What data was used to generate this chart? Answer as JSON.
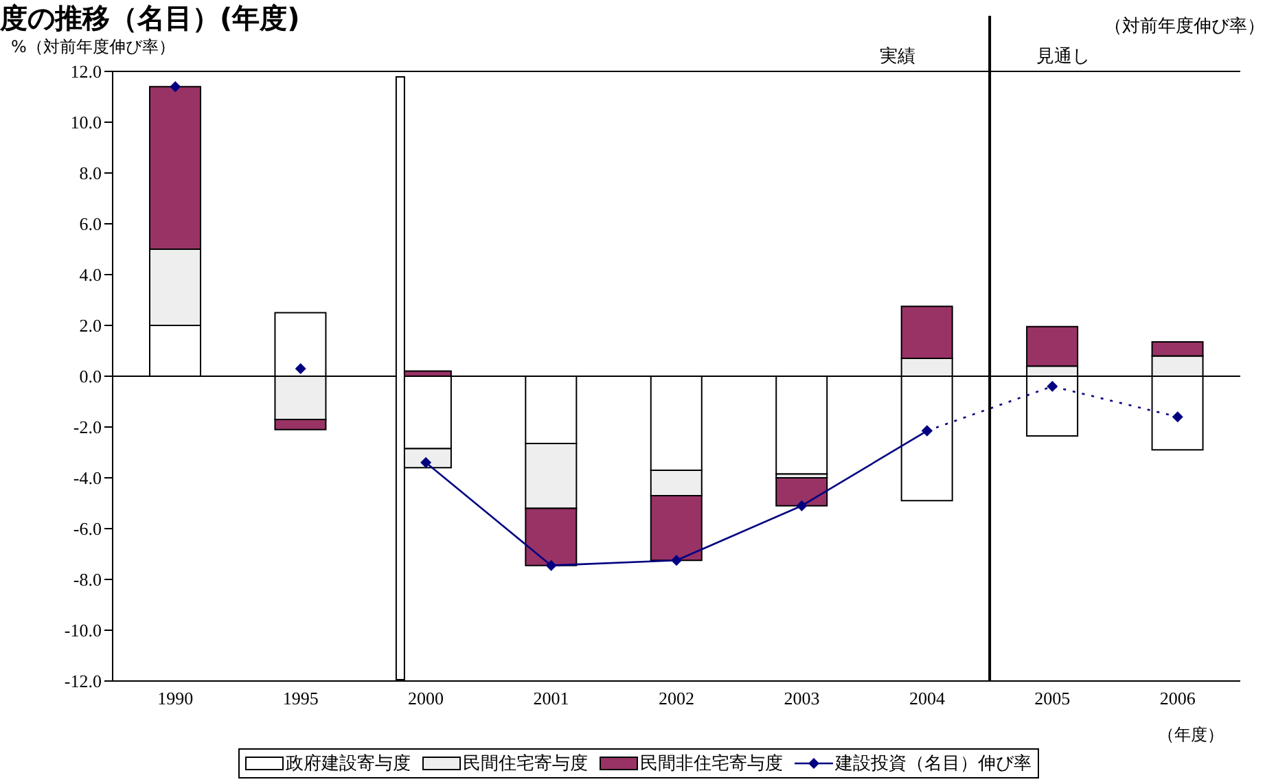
{
  "chart_data": {
    "type": "bar",
    "title": "度の推移（名目）(年度)",
    "ylabel": "%（対前年度伸び率）",
    "xlabel": "（年度）",
    "stacked": true,
    "legend": "bottom",
    "grid": false,
    "categories": [
      "1990",
      "1995",
      "2000",
      "2001",
      "2002",
      "2003",
      "2004",
      "2005",
      "2006"
    ],
    "series": [
      {
        "name": "政府建設寄与度",
        "color": "#ffffff",
        "values": [
          2.0,
          2.5,
          -2.85,
          -2.65,
          -3.7,
          -3.85,
          -4.9,
          -2.35,
          -2.9
        ]
      },
      {
        "name": "民間住宅寄与度",
        "color": "#eeeeee",
        "values": [
          3.0,
          -1.7,
          -0.75,
          -2.55,
          -1.0,
          -0.15,
          0.7,
          0.4,
          0.8
        ]
      },
      {
        "name": "民間非住宅寄与度",
        "color": "#993366",
        "values": [
          6.4,
          -0.4,
          0.2,
          -2.25,
          -2.55,
          -1.1,
          2.05,
          1.55,
          0.55
        ]
      },
      {
        "name": "建設投資（名目）伸び率",
        "type": "line",
        "color": "#000080",
        "marker": "diamond",
        "line_style": "solid",
        "values": [
          null,
          null,
          -3.4,
          -7.45,
          -7.25,
          -5.1,
          -2.15,
          null,
          null
        ]
      },
      {
        "type": "line",
        "color": "#000080",
        "marker": "diamond",
        "line_style": "dotted",
        "values": [
          null,
          null,
          null,
          null,
          null,
          null,
          -2.15,
          -0.4,
          -1.6
        ]
      },
      {
        "type": "scatter",
        "color": "#000080",
        "marker": "diamond",
        "values": [
          11.4,
          0.3,
          null,
          null,
          null,
          null,
          null,
          null,
          null
        ]
      }
    ],
    "ylim": [
      -12,
      12
    ],
    "yticks": [
      {
        "value": -12,
        "label": "-12.0"
      },
      {
        "value": -10,
        "label": "-10.0"
      },
      {
        "value": -8,
        "label": "-8.0"
      },
      {
        "value": -6,
        "label": "-6.0"
      },
      {
        "value": -4,
        "label": "-4.0"
      },
      {
        "value": -2,
        "label": "-2.0"
      },
      {
        "value": 0,
        "label": "0.0"
      },
      {
        "value": 2,
        "label": "2.0"
      },
      {
        "value": 4,
        "label": "4.0"
      },
      {
        "value": 6,
        "label": "6.0"
      },
      {
        "value": 8,
        "label": "8.0"
      },
      {
        "value": 10,
        "label": "10.0"
      },
      {
        "value": 12,
        "label": "12.0"
      }
    ],
    "ref_lines": [
      {
        "axis": "y",
        "value": 0,
        "color": "#000000"
      }
    ],
    "annotations": [
      "実績",
      "見通し",
      "（対前年度伸び率）"
    ]
  }
}
